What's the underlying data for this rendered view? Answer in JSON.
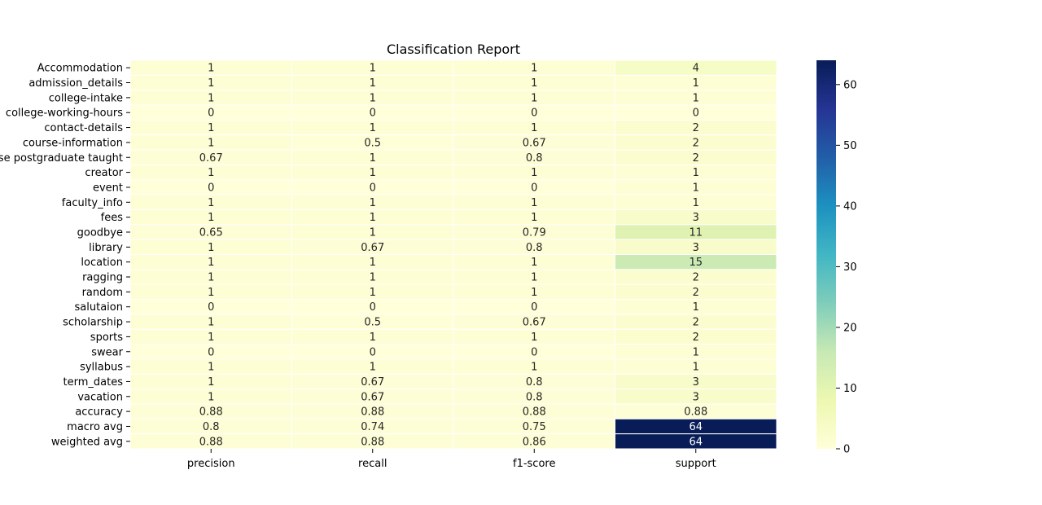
{
  "chart_data": {
    "type": "heatmap",
    "title": "Classification Report",
    "columns": [
      "precision",
      "recall",
      "f1-score",
      "support"
    ],
    "rows": [
      "Accommodation",
      "admission_details",
      "college-intake",
      "college-working-hours",
      "contact-details",
      "course-information",
      "course postgraduate taught",
      "creator",
      "event",
      "faculty_info",
      "fees",
      "goodbye",
      "library",
      "location",
      "ragging",
      "random",
      "salutaion",
      "scholarship",
      "sports",
      "swear",
      "syllabus",
      "term_dates",
      "vacation",
      "accuracy",
      "macro avg",
      "weighted avg"
    ],
    "values": [
      [
        1,
        1,
        1,
        4
      ],
      [
        1,
        1,
        1,
        1
      ],
      [
        1,
        1,
        1,
        1
      ],
      [
        0,
        0,
        0,
        0
      ],
      [
        1,
        1,
        1,
        2
      ],
      [
        1,
        0.5,
        0.67,
        2
      ],
      [
        0.67,
        1,
        0.8,
        2
      ],
      [
        1,
        1,
        1,
        1
      ],
      [
        0,
        0,
        0,
        1
      ],
      [
        1,
        1,
        1,
        1
      ],
      [
        1,
        1,
        1,
        3
      ],
      [
        0.65,
        1,
        0.79,
        11
      ],
      [
        1,
        0.67,
        0.8,
        3
      ],
      [
        1,
        1,
        1,
        15
      ],
      [
        1,
        1,
        1,
        2
      ],
      [
        1,
        1,
        1,
        2
      ],
      [
        0,
        0,
        0,
        1
      ],
      [
        1,
        0.5,
        0.67,
        2
      ],
      [
        1,
        1,
        1,
        2
      ],
      [
        0,
        0,
        0,
        1
      ],
      [
        1,
        1,
        1,
        1
      ],
      [
        1,
        0.67,
        0.8,
        3
      ],
      [
        1,
        0.67,
        0.8,
        3
      ],
      [
        0.88,
        0.88,
        0.88,
        0.88
      ],
      [
        0.8,
        0.74,
        0.75,
        64
      ],
      [
        0.88,
        0.88,
        0.86,
        64
      ]
    ],
    "colormap": "YlGnBu",
    "colorbar_range": [
      0,
      64
    ],
    "colorbar_ticks": [
      0,
      10,
      20,
      30,
      40,
      50,
      60
    ],
    "colors": {
      "cmap_stops": [
        "#ffffd9",
        "#edf8b1",
        "#c7e9b4",
        "#7fcdbb",
        "#41b6c4",
        "#1d91c0",
        "#225ea8",
        "#253494",
        "#081d58"
      ],
      "cell_border": "#ffffff",
      "text_dark": "#262626",
      "text_light": "#ffffff"
    }
  }
}
